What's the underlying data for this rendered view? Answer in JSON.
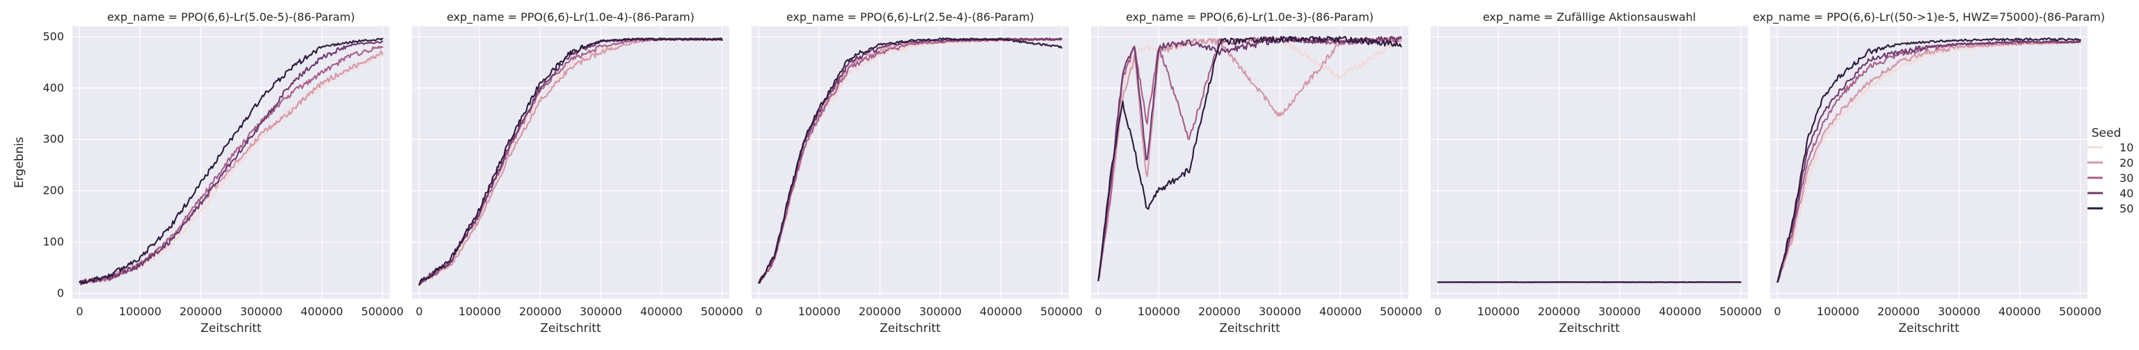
{
  "figure": {
    "ylabel": "Ergebnis",
    "xlabel": "Zeitschritt",
    "legend_title": "Seed",
    "legend_position": "right",
    "background": "#eaeaf2",
    "grid": true,
    "grid_color": "#ffffff"
  },
  "legend": {
    "items": [
      {
        "label": "10",
        "color": "#f4dad8"
      },
      {
        "label": "20",
        "color": "#d497a8"
      },
      {
        "label": "30",
        "color": "#a85f8a"
      },
      {
        "label": "40",
        "color": "#6e3a6e"
      },
      {
        "label": "50",
        "color": "#2c1a3d"
      }
    ]
  },
  "chart_data": [
    {
      "type": "line",
      "title": "exp_name = PPO(6,6)-Lr(5.0e-5)-(86-Param)",
      "xlabel": "Zeitschritt",
      "ylabel": "Ergebnis",
      "xlim": [
        -12000,
        512000
      ],
      "ylim": [
        -10,
        520
      ],
      "xticks": [
        0,
        100000,
        200000,
        300000,
        400000,
        500000
      ],
      "yticks": [
        0,
        100,
        200,
        300,
        400,
        500
      ],
      "grid": true,
      "series": [
        {
          "name": "10",
          "color": "#f4dad8",
          "x": [
            0,
            50000,
            100000,
            150000,
            200000,
            250000,
            300000,
            350000,
            400000,
            450000,
            500000
          ],
          "y": [
            21,
            30,
            52,
            92,
            160,
            235,
            305,
            360,
            405,
            440,
            465
          ]
        },
        {
          "name": "20",
          "color": "#d497a8",
          "x": [
            0,
            50000,
            100000,
            150000,
            200000,
            250000,
            300000,
            350000,
            400000,
            450000,
            500000
          ],
          "y": [
            21,
            32,
            58,
            105,
            175,
            245,
            310,
            355,
            410,
            440,
            470
          ]
        },
        {
          "name": "30",
          "color": "#a85f8a",
          "x": [
            0,
            50000,
            100000,
            150000,
            200000,
            250000,
            300000,
            350000,
            400000,
            450000,
            500000
          ],
          "y": [
            21,
            30,
            56,
            108,
            185,
            265,
            335,
            390,
            430,
            465,
            480
          ]
        },
        {
          "name": "40",
          "color": "#6e3a6e",
          "x": [
            0,
            50000,
            100000,
            150000,
            200000,
            250000,
            300000,
            350000,
            400000,
            450000,
            500000
          ],
          "y": [
            21,
            31,
            55,
            102,
            175,
            255,
            330,
            410,
            460,
            485,
            490
          ]
        },
        {
          "name": "50",
          "color": "#2c1a3d",
          "x": [
            0,
            50000,
            100000,
            150000,
            200000,
            250000,
            300000,
            350000,
            400000,
            450000,
            500000
          ],
          "y": [
            21,
            35,
            70,
            130,
            215,
            300,
            380,
            440,
            480,
            490,
            495
          ]
        }
      ]
    },
    {
      "type": "line",
      "title": "exp_name = PPO(6,6)-Lr(1.0e-4)-(86-Param)",
      "xlabel": "Zeitschritt",
      "ylabel": "",
      "xlim": [
        -12000,
        512000
      ],
      "ylim": [
        -10,
        520
      ],
      "xticks": [
        0,
        100000,
        200000,
        300000,
        400000,
        500000
      ],
      "yticks": [
        0,
        100,
        200,
        300,
        400,
        500
      ],
      "grid": true,
      "series": [
        {
          "name": "10",
          "color": "#f4dad8",
          "x": [
            0,
            50000,
            100000,
            150000,
            200000,
            250000,
            300000,
            350000,
            400000,
            450000,
            500000
          ],
          "y": [
            21,
            55,
            150,
            280,
            385,
            445,
            475,
            490,
            495,
            495,
            495
          ]
        },
        {
          "name": "20",
          "color": "#d497a8",
          "x": [
            0,
            50000,
            100000,
            150000,
            200000,
            250000,
            300000,
            350000,
            400000,
            450000,
            500000
          ],
          "y": [
            21,
            52,
            145,
            270,
            375,
            440,
            470,
            488,
            495,
            495,
            495
          ]
        },
        {
          "name": "30",
          "color": "#a85f8a",
          "x": [
            0,
            50000,
            100000,
            150000,
            200000,
            250000,
            300000,
            350000,
            400000,
            450000,
            500000
          ],
          "y": [
            21,
            58,
            155,
            285,
            395,
            455,
            480,
            492,
            495,
            495,
            495
          ]
        },
        {
          "name": "40",
          "color": "#6e3a6e",
          "x": [
            0,
            50000,
            100000,
            150000,
            200000,
            250000,
            300000,
            350000,
            400000,
            450000,
            500000
          ],
          "y": [
            21,
            60,
            160,
            290,
            400,
            465,
            490,
            495,
            495,
            495,
            495
          ]
        },
        {
          "name": "50",
          "color": "#2c1a3d",
          "x": [
            0,
            50000,
            100000,
            150000,
            200000,
            250000,
            300000,
            350000,
            400000,
            450000,
            500000
          ],
          "y": [
            21,
            62,
            165,
            300,
            410,
            470,
            492,
            495,
            495,
            495,
            495
          ]
        }
      ]
    },
    {
      "type": "line",
      "title": "exp_name = PPO(6,6)-Lr(2.5e-4)-(86-Param)",
      "xlabel": "Zeitschritt",
      "ylabel": "",
      "xlim": [
        -12000,
        512000
      ],
      "ylim": [
        -10,
        520
      ],
      "xticks": [
        0,
        100000,
        200000,
        300000,
        400000,
        500000
      ],
      "yticks": [
        0,
        100,
        200,
        300,
        400,
        500
      ],
      "grid": true,
      "series": [
        {
          "name": "10",
          "color": "#f4dad8",
          "x": [
            0,
            25000,
            50000,
            75000,
            100000,
            150000,
            200000,
            250000,
            300000,
            400000,
            500000
          ],
          "y": [
            21,
            60,
            170,
            280,
            340,
            430,
            465,
            480,
            488,
            492,
            495
          ]
        },
        {
          "name": "20",
          "color": "#d497a8",
          "x": [
            0,
            25000,
            50000,
            75000,
            100000,
            150000,
            200000,
            250000,
            300000,
            400000,
            500000
          ],
          "y": [
            21,
            65,
            180,
            290,
            350,
            445,
            475,
            488,
            492,
            495,
            495
          ]
        },
        {
          "name": "30",
          "color": "#a85f8a",
          "x": [
            0,
            25000,
            50000,
            75000,
            100000,
            150000,
            200000,
            250000,
            300000,
            400000,
            500000
          ],
          "y": [
            21,
            62,
            175,
            285,
            345,
            440,
            470,
            485,
            490,
            494,
            495
          ]
        },
        {
          "name": "40",
          "color": "#6e3a6e",
          "x": [
            0,
            25000,
            50000,
            75000,
            100000,
            150000,
            200000,
            250000,
            300000,
            400000,
            500000
          ],
          "y": [
            21,
            68,
            185,
            295,
            355,
            450,
            480,
            490,
            493,
            495,
            495
          ]
        },
        {
          "name": "50",
          "color": "#2c1a3d",
          "x": [
            0,
            25000,
            50000,
            75000,
            100000,
            150000,
            200000,
            250000,
            300000,
            400000,
            500000
          ],
          "y": [
            21,
            70,
            190,
            300,
            360,
            460,
            485,
            492,
            495,
            495,
            480
          ]
        }
      ]
    },
    {
      "type": "line",
      "title": "exp_name = PPO(6,6)-Lr(1.0e-3)-(86-Param)",
      "xlabel": "Zeitschritt",
      "ylabel": "",
      "xlim": [
        -12000,
        512000
      ],
      "ylim": [
        -10,
        520
      ],
      "xticks": [
        0,
        100000,
        200000,
        300000,
        400000,
        500000
      ],
      "yticks": [
        0,
        100,
        200,
        300,
        400,
        500
      ],
      "grid": true,
      "series": [
        {
          "name": "10",
          "color": "#f4dad8",
          "x": [
            0,
            20000,
            40000,
            60000,
            80000,
            100000,
            150000,
            200000,
            300000,
            400000,
            500000
          ],
          "y": [
            21,
            200,
            400,
            470,
            480,
            470,
            485,
            490,
            495,
            420,
            495
          ]
        },
        {
          "name": "20",
          "color": "#d497a8",
          "x": [
            0,
            20000,
            40000,
            60000,
            80000,
            100000,
            150000,
            200000,
            300000,
            400000,
            500000
          ],
          "y": [
            21,
            180,
            380,
            460,
            220,
            470,
            490,
            490,
            345,
            490,
            495
          ]
        },
        {
          "name": "30",
          "color": "#a85f8a",
          "x": [
            0,
            20000,
            40000,
            60000,
            80000,
            100000,
            150000,
            200000,
            300000,
            400000,
            500000
          ],
          "y": [
            21,
            190,
            420,
            480,
            330,
            480,
            300,
            490,
            495,
            490,
            495
          ]
        },
        {
          "name": "40",
          "color": "#6e3a6e",
          "x": [
            0,
            20000,
            40000,
            60000,
            80000,
            100000,
            150000,
            200000,
            300000,
            400000,
            500000
          ],
          "y": [
            21,
            210,
            430,
            480,
            250,
            480,
            490,
            470,
            495,
            492,
            495
          ]
        },
        {
          "name": "50",
          "color": "#2c1a3d",
          "x": [
            0,
            20000,
            40000,
            60000,
            80000,
            100000,
            150000,
            200000,
            300000,
            400000,
            500000
          ],
          "y": [
            21,
            230,
            370,
            280,
            165,
            200,
            240,
            490,
            495,
            495,
            485
          ]
        }
      ]
    },
    {
      "type": "line",
      "title": "exp_name = Zufällige Aktionsauswahl",
      "xlabel": "Zeitschritt",
      "ylabel": "",
      "xlim": [
        -12000,
        512000
      ],
      "ylim": [
        -10,
        520
      ],
      "xticks": [
        0,
        100000,
        200000,
        300000,
        400000,
        500000
      ],
      "yticks": [
        0,
        100,
        200,
        300,
        400,
        500
      ],
      "grid": true,
      "series": [
        {
          "name": "10",
          "color": "#f4dad8",
          "x": [
            0,
            100000,
            200000,
            300000,
            400000,
            500000
          ],
          "y": [
            22,
            22,
            22,
            22,
            22,
            22
          ]
        },
        {
          "name": "20",
          "color": "#d497a8",
          "x": [
            0,
            100000,
            200000,
            300000,
            400000,
            500000
          ],
          "y": [
            22,
            22,
            22,
            22,
            22,
            22
          ]
        },
        {
          "name": "30",
          "color": "#a85f8a",
          "x": [
            0,
            100000,
            200000,
            300000,
            400000,
            500000
          ],
          "y": [
            22,
            22,
            22,
            22,
            22,
            22
          ]
        },
        {
          "name": "40",
          "color": "#6e3a6e",
          "x": [
            0,
            100000,
            200000,
            300000,
            400000,
            500000
          ],
          "y": [
            22,
            22,
            22,
            22,
            22,
            22
          ]
        },
        {
          "name": "50",
          "color": "#2c1a3d",
          "x": [
            0,
            100000,
            200000,
            300000,
            400000,
            500000
          ],
          "y": [
            22,
            22,
            22,
            22,
            22,
            22
          ]
        }
      ]
    },
    {
      "type": "line",
      "title": "exp_name = PPO(6,6)-Lr((50->1)e-5, HWZ=75000)-(86-Param)",
      "xlabel": "Zeitschritt",
      "ylabel": "",
      "xlim": [
        -12000,
        512000
      ],
      "ylim": [
        -10,
        520
      ],
      "xticks": [
        0,
        100000,
        200000,
        300000,
        400000,
        500000
      ],
      "yticks": [
        0,
        100,
        200,
        300,
        400,
        500
      ],
      "grid": true,
      "series": [
        {
          "name": "10",
          "color": "#f4dad8",
          "x": [
            0,
            25000,
            50000,
            75000,
            100000,
            150000,
            200000,
            250000,
            300000,
            400000,
            500000
          ],
          "y": [
            21,
            100,
            220,
            300,
            340,
            400,
            440,
            465,
            478,
            485,
            488
          ]
        },
        {
          "name": "20",
          "color": "#d497a8",
          "x": [
            0,
            25000,
            50000,
            75000,
            100000,
            150000,
            200000,
            250000,
            300000,
            400000,
            500000
          ],
          "y": [
            21,
            110,
            240,
            310,
            350,
            410,
            450,
            470,
            480,
            486,
            490
          ]
        },
        {
          "name": "30",
          "color": "#a85f8a",
          "x": [
            0,
            25000,
            50000,
            75000,
            100000,
            150000,
            200000,
            250000,
            300000,
            400000,
            500000
          ],
          "y": [
            21,
            120,
            260,
            330,
            380,
            440,
            465,
            478,
            485,
            488,
            490
          ]
        },
        {
          "name": "40",
          "color": "#6e3a6e",
          "x": [
            0,
            25000,
            50000,
            75000,
            100000,
            150000,
            200000,
            250000,
            300000,
            400000,
            500000
          ],
          "y": [
            21,
            130,
            280,
            350,
            390,
            455,
            470,
            480,
            486,
            490,
            490
          ]
        },
        {
          "name": "50",
          "color": "#2c1a3d",
          "x": [
            0,
            25000,
            50000,
            75000,
            100000,
            150000,
            200000,
            250000,
            300000,
            400000,
            500000
          ],
          "y": [
            21,
            140,
            300,
            380,
            420,
            470,
            485,
            490,
            493,
            495,
            495
          ]
        }
      ]
    }
  ]
}
